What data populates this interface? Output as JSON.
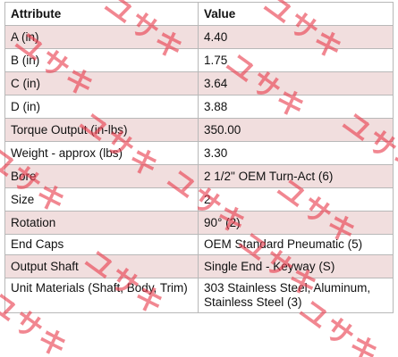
{
  "table": {
    "headers": [
      "Attribute",
      "Value"
    ],
    "rows": [
      {
        "attribute": "A (in)",
        "value": "4.40"
      },
      {
        "attribute": "B (in)",
        "value": "1.75"
      },
      {
        "attribute": "C (in)",
        "value": "3.64"
      },
      {
        "attribute": "D (in)",
        "value": "3.88"
      },
      {
        "attribute": "Torque Output (in-lbs)",
        "value": "350.00"
      },
      {
        "attribute": "Weight - approx (lbs)",
        "value": "3.30"
      },
      {
        "attribute": "Bore",
        "value": "2 1/2\" OEM Turn-Act (6)"
      },
      {
        "attribute": "Size",
        "value": "2"
      },
      {
        "attribute": "Rotation",
        "value": "90° (2)"
      },
      {
        "attribute": "End Caps",
        "value": "OEM Standard Pneumatic (5)"
      },
      {
        "attribute": "Output Shaft",
        "value": "Single End - Keyway (S)"
      },
      {
        "attribute": "Unit Materials (Shaft, Body, Trim)",
        "value": "303 Stainless Steel, Aluminum, Stainless Steel (3)"
      }
    ]
  },
  "watermark": {
    "text": "ユサキ",
    "color": "#e93e4e"
  },
  "colors": {
    "row_shade": "#f1dede",
    "border": "#b8b8b8"
  }
}
